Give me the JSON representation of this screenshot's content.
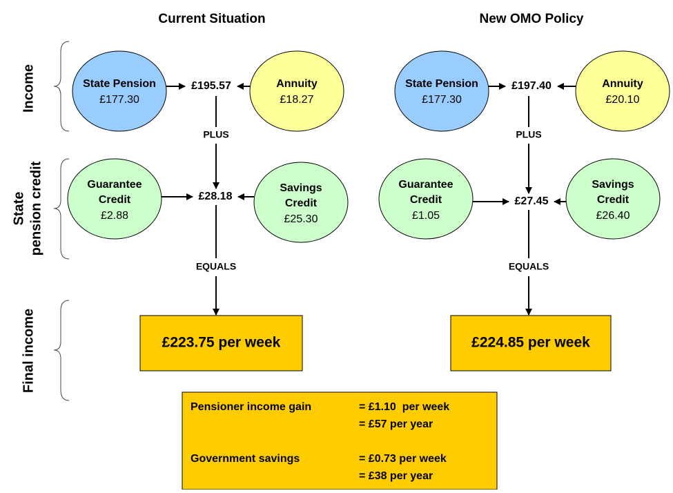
{
  "columns": [
    {
      "title": "Current Situation",
      "income": {
        "state_pension": {
          "label": "State Pension",
          "amount": "£177.30"
        },
        "annuity": {
          "label": "Annuity",
          "amount": "£18.27"
        },
        "total": "£195.57"
      },
      "plus": "PLUS",
      "credit": {
        "guarantee": {
          "label_lines": [
            "Guarantee",
            "Credit"
          ],
          "amount": "£2.88"
        },
        "savings": {
          "label_lines": [
            "Savings",
            "Credit"
          ],
          "amount": "£25.30"
        },
        "total": "£28.18"
      },
      "equals": "EQUALS",
      "final": "£223.75 per week"
    },
    {
      "title": "New OMO Policy",
      "income": {
        "state_pension": {
          "label": "State Pension",
          "amount": "£177.30"
        },
        "annuity": {
          "label": "Annuity",
          "amount": "£20.10"
        },
        "total": "£197.40"
      },
      "plus": "PLUS",
      "credit": {
        "guarantee": {
          "label_lines": [
            "Guarantee",
            "Credit"
          ],
          "amount": "£1.05"
        },
        "savings": {
          "label_lines": [
            "Savings",
            "Credit"
          ],
          "amount": "£26.40"
        },
        "total": "£27.45"
      },
      "equals": "EQUALS",
      "final": "£224.85 per week"
    }
  ],
  "row_labels": {
    "income": "Income",
    "state_pension_credit": [
      "State",
      "pension credit"
    ],
    "final_income": "Final income"
  },
  "summary": [
    {
      "label": "Pensioner income gain",
      "lines": [
        "= £1.10  per week",
        "= £57 per year"
      ]
    },
    {
      "label": "Government savings",
      "lines": [
        "= £0.73 per week",
        "= £38 per year"
      ]
    }
  ]
}
